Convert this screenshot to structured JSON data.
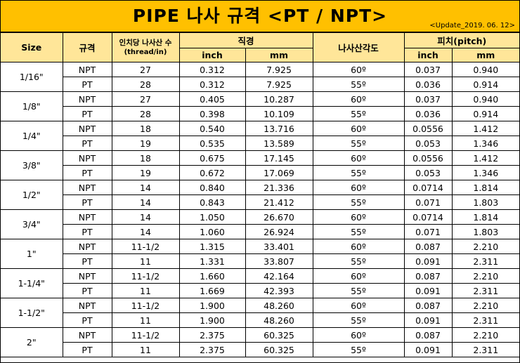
{
  "title": "PIPE 나사 규격 <PT / NPT>",
  "update_label": "<Update_2019. 06. 12>",
  "header": {
    "size": "Size",
    "standard": "규격",
    "tpi_line1": "인치당 나사산 수",
    "tpi_line2": "(thread/in)",
    "diameter": "직경",
    "diameter_inch": "inch",
    "diameter_mm": "mm",
    "thread_angle": "나사산각도",
    "pitch": "피치(pitch)",
    "pitch_inch": "inch",
    "pitch_mm": "mm"
  },
  "colors": {
    "title_bg": "#ffc000",
    "header_bg": "#ffe699"
  },
  "groups": [
    {
      "size": "1/16\"",
      "rows": [
        {
          "std": "NPT",
          "tpi": "27",
          "dia_in": "0.312",
          "dia_mm": "7.925",
          "angle": "60º",
          "pitch_in": "0.037",
          "pitch_mm": "0.940"
        },
        {
          "std": "PT",
          "tpi": "28",
          "dia_in": "0.312",
          "dia_mm": "7.925",
          "angle": "55º",
          "pitch_in": "0.036",
          "pitch_mm": "0.914"
        }
      ]
    },
    {
      "size": "1/8\"",
      "rows": [
        {
          "std": "NPT",
          "tpi": "27",
          "dia_in": "0.405",
          "dia_mm": "10.287",
          "angle": "60º",
          "pitch_in": "0.037",
          "pitch_mm": "0.940"
        },
        {
          "std": "PT",
          "tpi": "28",
          "dia_in": "0.398",
          "dia_mm": "10.109",
          "angle": "55º",
          "pitch_in": "0.036",
          "pitch_mm": "0.914"
        }
      ]
    },
    {
      "size": "1/4\"",
      "rows": [
        {
          "std": "NPT",
          "tpi": "18",
          "dia_in": "0.540",
          "dia_mm": "13.716",
          "angle": "60º",
          "pitch_in": "0.0556",
          "pitch_mm": "1.412"
        },
        {
          "std": "PT",
          "tpi": "19",
          "dia_in": "0.535",
          "dia_mm": "13.589",
          "angle": "55º",
          "pitch_in": "0.053",
          "pitch_mm": "1.346"
        }
      ]
    },
    {
      "size": "3/8\"",
      "rows": [
        {
          "std": "NPT",
          "tpi": "18",
          "dia_in": "0.675",
          "dia_mm": "17.145",
          "angle": "60º",
          "pitch_in": "0.0556",
          "pitch_mm": "1.412"
        },
        {
          "std": "PT",
          "tpi": "19",
          "dia_in": "0.672",
          "dia_mm": "17.069",
          "angle": "55º",
          "pitch_in": "0.053",
          "pitch_mm": "1.346"
        }
      ]
    },
    {
      "size": "1/2\"",
      "rows": [
        {
          "std": "NPT",
          "tpi": "14",
          "dia_in": "0.840",
          "dia_mm": "21.336",
          "angle": "60º",
          "pitch_in": "0.0714",
          "pitch_mm": "1.814"
        },
        {
          "std": "PT",
          "tpi": "14",
          "dia_in": "0.843",
          "dia_mm": "21.412",
          "angle": "55º",
          "pitch_in": "0.071",
          "pitch_mm": "1.803"
        }
      ]
    },
    {
      "size": "3/4\"",
      "rows": [
        {
          "std": "NPT",
          "tpi": "14",
          "dia_in": "1.050",
          "dia_mm": "26.670",
          "angle": "60º",
          "pitch_in": "0.0714",
          "pitch_mm": "1.814"
        },
        {
          "std": "PT",
          "tpi": "14",
          "dia_in": "1.060",
          "dia_mm": "26.924",
          "angle": "55º",
          "pitch_in": "0.071",
          "pitch_mm": "1.803"
        }
      ]
    },
    {
      "size": "1\"",
      "rows": [
        {
          "std": "NPT",
          "tpi": "11-1/2",
          "dia_in": "1.315",
          "dia_mm": "33.401",
          "angle": "60º",
          "pitch_in": "0.087",
          "pitch_mm": "2.210"
        },
        {
          "std": "PT",
          "tpi": "11",
          "dia_in": "1.331",
          "dia_mm": "33.807",
          "angle": "55º",
          "pitch_in": "0.091",
          "pitch_mm": "2.311"
        }
      ]
    },
    {
      "size": "1-1/4\"",
      "rows": [
        {
          "std": "NPT",
          "tpi": "11-1/2",
          "dia_in": "1.660",
          "dia_mm": "42.164",
          "angle": "60º",
          "pitch_in": "0.087",
          "pitch_mm": "2.210"
        },
        {
          "std": "PT",
          "tpi": "11",
          "dia_in": "1.669",
          "dia_mm": "42.393",
          "angle": "55º",
          "pitch_in": "0.091",
          "pitch_mm": "2.311"
        }
      ]
    },
    {
      "size": "1-1/2\"",
      "rows": [
        {
          "std": "NPT",
          "tpi": "11-1/2",
          "dia_in": "1.900",
          "dia_mm": "48.260",
          "angle": "60º",
          "pitch_in": "0.087",
          "pitch_mm": "2.210"
        },
        {
          "std": "PT",
          "tpi": "11",
          "dia_in": "1.900",
          "dia_mm": "48.260",
          "angle": "55º",
          "pitch_in": "0.091",
          "pitch_mm": "2.311"
        }
      ]
    },
    {
      "size": "2\"",
      "rows": [
        {
          "std": "NPT",
          "tpi": "11-1/2",
          "dia_in": "2.375",
          "dia_mm": "60.325",
          "angle": "60º",
          "pitch_in": "0.087",
          "pitch_mm": "2.210"
        },
        {
          "std": "PT",
          "tpi": "11",
          "dia_in": "2.375",
          "dia_mm": "60.325",
          "angle": "55º",
          "pitch_in": "0.091",
          "pitch_mm": "2.311"
        }
      ]
    }
  ]
}
